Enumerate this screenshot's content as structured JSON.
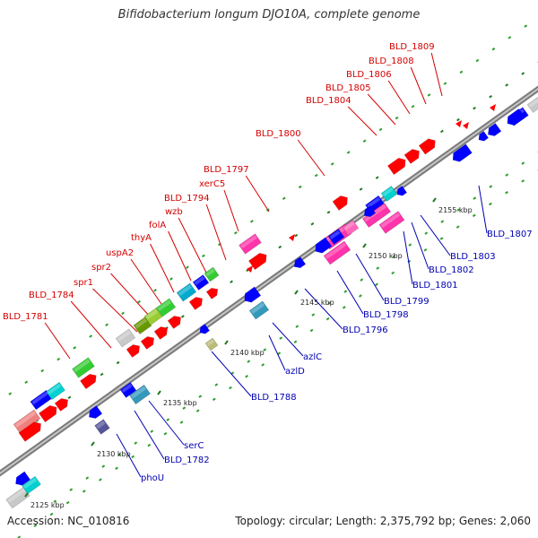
{
  "title": "Bifidobacterium longum DJO10A, complete genome",
  "accession": "Accession: NC_010816",
  "summary": "Topology: circular; Length: 2,375,792 bp; Genes: 2,060",
  "colors": {
    "forward_label": "#d40000",
    "reverse_label": "#0000b4",
    "backbone": "#888888",
    "tick_major": "#1f7a1f",
    "tick_minor": "#2f9e2f",
    "cds_forward": "#ff0000",
    "cds_reverse": "#0000ff"
  },
  "ruler": [
    {
      "label": "2125 kbp"
    },
    {
      "label": "2130 kbp"
    },
    {
      "label": "2135 kbp"
    },
    {
      "label": "2140 kbp"
    },
    {
      "label": "2145 kbp"
    },
    {
      "label": "2150 kbp"
    },
    {
      "label": "2155 kbp"
    }
  ],
  "forward_genes": [
    {
      "label": "BLD_1781"
    },
    {
      "label": "BLD_1784"
    },
    {
      "label": "spr1"
    },
    {
      "label": "spr2"
    },
    {
      "label": "uspA2"
    },
    {
      "label": "thyA"
    },
    {
      "label": "folA"
    },
    {
      "label": "wzb"
    },
    {
      "label": "BLD_1794"
    },
    {
      "label": "xerC5"
    },
    {
      "label": "BLD_1797"
    },
    {
      "label": "BLD_1800"
    },
    {
      "label": "BLD_1804"
    },
    {
      "label": "BLD_1805"
    },
    {
      "label": "BLD_1806"
    },
    {
      "label": "BLD_1808"
    },
    {
      "label": "BLD_1809"
    }
  ],
  "reverse_genes": [
    {
      "label": "phoU"
    },
    {
      "label": "BLD_1782"
    },
    {
      "label": "serC"
    },
    {
      "label": "BLD_1788"
    },
    {
      "label": "azlD"
    },
    {
      "label": "azlC"
    },
    {
      "label": "BLD_1796"
    },
    {
      "label": "BLD_1798"
    },
    {
      "label": "BLD_1799"
    },
    {
      "label": "BLD_1801"
    },
    {
      "label": "BLD_1802"
    },
    {
      "label": "BLD_1803"
    },
    {
      "label": "BLD_1807"
    }
  ]
}
